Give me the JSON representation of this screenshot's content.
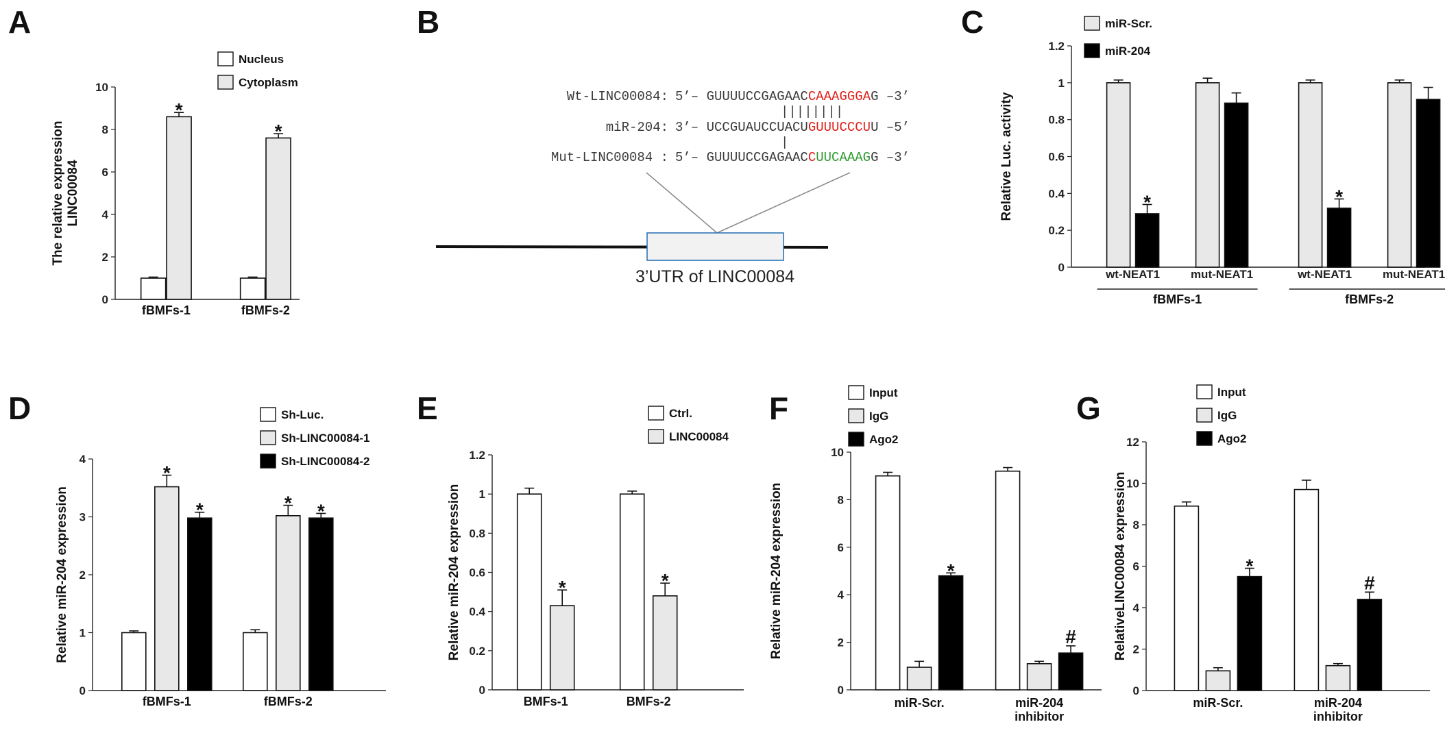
{
  "colors": {
    "white_bar": "#ffffff",
    "gray_bar": "#e8e8e8",
    "black_bar": "#000000",
    "site_red": "#e0211b",
    "site_green": "#2e9a2e",
    "utr_box_stroke": "#2e75b6",
    "utr_box_fill": "#f2f2f2"
  },
  "panel_b": {
    "letter": "B",
    "wt": {
      "label": "Wt-LINC00084:",
      "prefix": "5’– GUUUUCCGAGAAC",
      "site": "CAAAGGGA",
      "suffix": "G –3’"
    },
    "pairing": "||||||||",
    "mir": {
      "label": "miR-204:",
      "prefix": "3’– UCCGUAUCCUACU",
      "site": "GUUUCCCU",
      "suffix": "U –5’"
    },
    "pairing_mut": "|",
    "mut": {
      "label": "Mut-LINC00084 :",
      "prefix": "5’– GUUUUCCGAGAAC",
      "site_red": "C",
      "site_green": "UUCAAAG",
      "suffix": "G –3’"
    },
    "utr_label": "3’UTR of LINC00084"
  },
  "chart_data": [
    {
      "panel": "A",
      "type": "bar",
      "title": "",
      "xlabel": "",
      "ylabel": "The relative expression LINC00084",
      "ylim": [
        0,
        10
      ],
      "yticks": [
        "0",
        "2",
        "4",
        "6",
        "8",
        "10"
      ],
      "categories": [
        "fBMFs-1",
        "fBMFs-2"
      ],
      "series": [
        {
          "name": "Nucleus",
          "color": "white",
          "values": [
            1.0,
            1.0
          ],
          "errors": [
            0.05,
            0.05
          ],
          "marks": [
            "",
            ""
          ]
        },
        {
          "name": "Cytoplasm",
          "color": "gray",
          "values": [
            8.6,
            7.6
          ],
          "errors": [
            0.2,
            0.2
          ],
          "marks": [
            "*",
            "*"
          ]
        }
      ],
      "legend": "top-right",
      "grid": false
    },
    {
      "panel": "C",
      "type": "bar",
      "title": "",
      "xlabel": "",
      "ylabel": "Relative Luc. activity",
      "ylim": [
        0,
        1.2
      ],
      "yticks": [
        "0",
        "0.2",
        "0.4",
        "0.6",
        "0.8",
        "1",
        "1.2"
      ],
      "categories": [
        "wt-NEAT1",
        "mut-NEAT1",
        "wt-NEAT1",
        "mut-NEAT1"
      ],
      "groups": [
        {
          "label": "fBMFs-1",
          "span": [
            0,
            1
          ]
        },
        {
          "label": "fBMFs-2",
          "span": [
            2,
            3
          ]
        }
      ],
      "series": [
        {
          "name": "miR-Scr.",
          "color": "gray",
          "values": [
            1.0,
            1.0,
            1.0,
            1.0
          ],
          "errors": [
            0.015,
            0.025,
            0.015,
            0.015
          ],
          "marks": [
            "",
            "",
            "",
            ""
          ]
        },
        {
          "name": "miR-204",
          "color": "black",
          "values": [
            0.29,
            0.89,
            0.32,
            0.91
          ],
          "errors": [
            0.05,
            0.055,
            0.05,
            0.065
          ],
          "marks": [
            "*",
            "",
            "*",
            ""
          ]
        }
      ],
      "legend": "top-left",
      "grid": false
    },
    {
      "panel": "D",
      "type": "bar",
      "title": "",
      "xlabel": "",
      "ylabel": "Relative miR-204 expression",
      "ylim": [
        0,
        4
      ],
      "yticks": [
        "0",
        "1",
        "2",
        "3",
        "4"
      ],
      "categories": [
        "fBMFs-1",
        "fBMFs-2"
      ],
      "series": [
        {
          "name": "Sh-Luc.",
          "color": "white",
          "values": [
            1.0,
            1.0
          ],
          "errors": [
            0.03,
            0.05
          ],
          "marks": [
            "",
            ""
          ]
        },
        {
          "name": "Sh-LINC00084-1",
          "color": "gray",
          "values": [
            3.52,
            3.02
          ],
          "errors": [
            0.2,
            0.18
          ],
          "marks": [
            "*",
            "*"
          ]
        },
        {
          "name": "Sh-LINC00084-2",
          "color": "black",
          "values": [
            2.98,
            2.98
          ],
          "errors": [
            0.1,
            0.08
          ],
          "marks": [
            "*",
            "*"
          ]
        }
      ],
      "legend": "top-right",
      "grid": false
    },
    {
      "panel": "E",
      "type": "bar",
      "title": "",
      "xlabel": "",
      "ylabel": "Relative miR-204 expression",
      "ylim": [
        0,
        1.2
      ],
      "yticks": [
        "0",
        "0.2",
        "0.4",
        "0.6",
        "0.8",
        "1",
        "1.2"
      ],
      "categories": [
        "BMFs-1",
        "BMFs-2"
      ],
      "series": [
        {
          "name": "Ctrl.",
          "color": "white",
          "values": [
            1.0,
            1.0
          ],
          "errors": [
            0.03,
            0.015
          ],
          "marks": [
            "",
            ""
          ]
        },
        {
          "name": "LINC00084",
          "color": "gray",
          "values": [
            0.43,
            0.48
          ],
          "errors": [
            0.08,
            0.065
          ],
          "marks": [
            "*",
            "*"
          ]
        }
      ],
      "legend": "top-right",
      "grid": false
    },
    {
      "panel": "F",
      "type": "bar",
      "title": "",
      "xlabel": "",
      "ylabel": "Relative miR-204 expression",
      "ylim": [
        0,
        10
      ],
      "yticks": [
        "0",
        "2",
        "4",
        "6",
        "8",
        "10"
      ],
      "categories": [
        "miR-Scr.",
        "miR-204 inhibitor"
      ],
      "series": [
        {
          "name": "Input",
          "color": "white",
          "values": [
            9.0,
            9.2
          ],
          "errors": [
            0.15,
            0.15
          ],
          "marks": [
            "",
            ""
          ]
        },
        {
          "name": "IgG",
          "color": "gray",
          "values": [
            0.95,
            1.1
          ],
          "errors": [
            0.25,
            0.1
          ],
          "marks": [
            "",
            ""
          ]
        },
        {
          "name": "Ago2",
          "color": "black",
          "values": [
            4.8,
            1.55
          ],
          "errors": [
            0.12,
            0.3
          ],
          "marks": [
            "*",
            "#"
          ]
        }
      ],
      "legend": "top-left",
      "grid": false
    },
    {
      "panel": "G",
      "type": "bar",
      "title": "",
      "xlabel": "",
      "ylabel": "RelativeLINC00084 expression",
      "ylim": [
        0,
        12
      ],
      "yticks": [
        "0",
        "2",
        "4",
        "6",
        "8",
        "10",
        "12"
      ],
      "categories": [
        "miR-Scr.",
        "miR-204 inhibitor"
      ],
      "series": [
        {
          "name": "Input",
          "color": "white",
          "values": [
            8.9,
            9.7
          ],
          "errors": [
            0.2,
            0.45
          ],
          "marks": [
            "",
            ""
          ]
        },
        {
          "name": "IgG",
          "color": "gray",
          "values": [
            0.95,
            1.2
          ],
          "errors": [
            0.15,
            0.1
          ],
          "marks": [
            "",
            ""
          ]
        },
        {
          "name": "Ago2",
          "color": "black",
          "values": [
            5.5,
            4.4
          ],
          "errors": [
            0.4,
            0.35
          ],
          "marks": [
            "*",
            "#"
          ]
        }
      ],
      "legend": "top-left",
      "grid": false
    }
  ]
}
